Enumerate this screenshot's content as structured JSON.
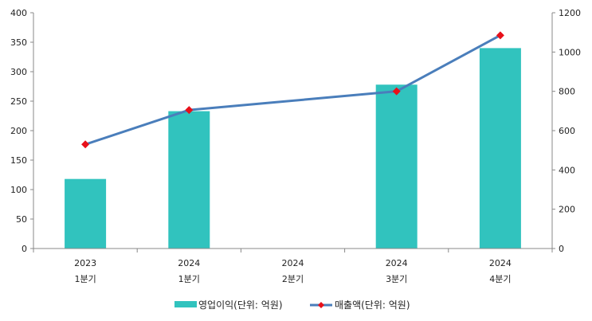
{
  "chart_data": {
    "type": "bar+line",
    "categories": [
      {
        "year": "2023",
        "quarter": "1분기"
      },
      {
        "year": "2024",
        "quarter": "1분기"
      },
      {
        "year": "2024",
        "quarter": "2분기"
      },
      {
        "year": "2024",
        "quarter": "3분기"
      },
      {
        "year": "2024",
        "quarter": "4분기"
      }
    ],
    "series": [
      {
        "name": "영업이익(단위: 억원)",
        "type": "bar",
        "axis": "left",
        "color": "#31c3be",
        "values": [
          118,
          233,
          null,
          278,
          340
        ]
      },
      {
        "name": "매출액(단위: 억원)",
        "type": "line",
        "axis": "right",
        "color": "#4a7ebb",
        "marker_color": "#e8101a",
        "values": [
          530,
          705,
          null,
          800,
          1085
        ]
      }
    ],
    "y_left": {
      "min": 0,
      "max": 400,
      "ticks": [
        "0",
        "50",
        "100",
        "150",
        "200",
        "250",
        "300",
        "350",
        "400"
      ]
    },
    "y_right": {
      "min": 0,
      "max": 1200,
      "ticks": [
        "0",
        "200",
        "400",
        "600",
        "800",
        "1000",
        "1200"
      ]
    },
    "grid": false,
    "legend_position": "bottom"
  }
}
